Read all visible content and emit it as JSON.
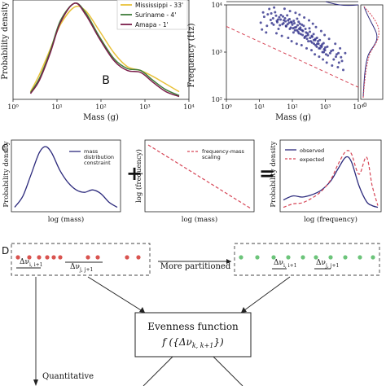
{
  "panel_letters": {
    "b": "B",
    "c": "C",
    "d": "D"
  },
  "colors": {
    "mississippi": "#e9c23b",
    "suriname": "#3f7d3a",
    "amapa": "#7a1d4a",
    "observed": "#2c2a7c",
    "expected": "#d64556",
    "scatter": "#2f2f8a",
    "red_dot": "#d9534f",
    "green_dot": "#6cc47a"
  },
  "chart_data": [
    {
      "type": "line",
      "panel": "A",
      "ylabel": "Probability density",
      "xlabel": "Mass (g)",
      "x_scale": "log",
      "xlim": [
        1,
        10000
      ],
      "xticks": [
        "10⁰",
        "10¹",
        "10²",
        "10³",
        "10⁴"
      ],
      "legend_position": "top-right",
      "series": [
        {
          "name": "Mississippi - 33'",
          "x": [
            2.5,
            4,
            7,
            12,
            25,
            45,
            90,
            200,
            400,
            800,
            1500,
            3000,
            6000
          ],
          "y": [
            0.08,
            0.26,
            0.52,
            0.78,
            0.96,
            0.92,
            0.72,
            0.48,
            0.34,
            0.3,
            0.24,
            0.16,
            0.08
          ]
        },
        {
          "name": "Suriname - 4'",
          "x": [
            2.5,
            4,
            7,
            12,
            25,
            45,
            90,
            200,
            400,
            800,
            1500,
            3000,
            6000
          ],
          "y": [
            0.07,
            0.22,
            0.5,
            0.82,
            1.0,
            0.9,
            0.66,
            0.42,
            0.32,
            0.3,
            0.2,
            0.1,
            0.04
          ]
        },
        {
          "name": "Amapa - 1'",
          "x": [
            2.5,
            4,
            7,
            12,
            25,
            45,
            90,
            200,
            400,
            800,
            1500,
            3000,
            6000
          ],
          "y": [
            0.06,
            0.2,
            0.48,
            0.8,
            1.0,
            0.88,
            0.64,
            0.4,
            0.3,
            0.28,
            0.18,
            0.08,
            0.03
          ]
        }
      ]
    },
    {
      "type": "scatter",
      "panel": "B",
      "xlabel": "Mass (g)",
      "ylabel": "Frequency (Hz)",
      "x_scale": "log",
      "y_scale": "log",
      "xlim": [
        1,
        10000
      ],
      "ylim": [
        100,
        10000
      ],
      "xticks": [
        "10⁰",
        "10¹",
        "10²",
        "10³",
        "10⁴"
      ],
      "yticks": [
        "10²",
        "10³",
        "10⁴"
      ],
      "fit_line": {
        "style": "dashed",
        "x": [
          1,
          10000
        ],
        "y": [
          3500,
          180
        ]
      },
      "points": [
        [
          14,
          5600
        ],
        [
          18,
          6300
        ],
        [
          22,
          4800
        ],
        [
          26,
          5200
        ],
        [
          30,
          7000
        ],
        [
          35,
          4300
        ],
        [
          40,
          5500
        ],
        [
          45,
          6100
        ],
        [
          50,
          3900
        ],
        [
          55,
          4700
        ],
        [
          60,
          5200
        ],
        [
          65,
          3500
        ],
        [
          70,
          6000
        ],
        [
          80,
          4200
        ],
        [
          90,
          3300
        ],
        [
          100,
          3800
        ],
        [
          110,
          4600
        ],
        [
          120,
          2900
        ],
        [
          130,
          3400
        ],
        [
          140,
          5100
        ],
        [
          150,
          2700
        ],
        [
          160,
          3100
        ],
        [
          170,
          4000
        ],
        [
          180,
          2400
        ],
        [
          200,
          2900
        ],
        [
          220,
          3600
        ],
        [
          240,
          2100
        ],
        [
          260,
          2600
        ],
        [
          280,
          1900
        ],
        [
          300,
          2300
        ],
        [
          330,
          3200
        ],
        [
          360,
          1700
        ],
        [
          400,
          2100
        ],
        [
          450,
          1500
        ],
        [
          500,
          1900
        ],
        [
          550,
          1300
        ],
        [
          600,
          1700
        ],
        [
          700,
          1200
        ],
        [
          800,
          1450
        ],
        [
          900,
          1000
        ],
        [
          1000,
          1250
        ],
        [
          1200,
          850
        ],
        [
          1500,
          1050
        ],
        [
          1800,
          700
        ],
        [
          2200,
          900
        ],
        [
          2600,
          600
        ],
        [
          3000,
          780
        ],
        [
          12,
          3000
        ],
        [
          16,
          2600
        ],
        [
          20,
          8200
        ],
        [
          28,
          8800
        ],
        [
          33,
          2500
        ],
        [
          38,
          3100
        ],
        [
          48,
          2200
        ],
        [
          58,
          8300
        ],
        [
          75,
          2000
        ],
        [
          85,
          7400
        ],
        [
          95,
          1700
        ],
        [
          125,
          6800
        ],
        [
          135,
          1500
        ],
        [
          165,
          6200
        ],
        [
          190,
          1400
        ],
        [
          230,
          5400
        ],
        [
          270,
          1200
        ],
        [
          320,
          4700
        ],
        [
          380,
          1100
        ],
        [
          420,
          4000
        ],
        [
          480,
          900
        ],
        [
          520,
          3400
        ],
        [
          650,
          800
        ],
        [
          750,
          2800
        ],
        [
          850,
          700
        ],
        [
          950,
          2300
        ],
        [
          1100,
          600
        ],
        [
          1300,
          1900
        ],
        [
          1600,
          520
        ],
        [
          2000,
          1500
        ],
        [
          2400,
          480
        ],
        [
          2800,
          1200
        ],
        [
          3500,
          420
        ],
        [
          4000,
          950
        ],
        [
          11,
          4200
        ],
        [
          13,
          6900
        ],
        [
          17,
          3600
        ],
        [
          23,
          6600
        ],
        [
          27,
          3800
        ],
        [
          32,
          5900
        ],
        [
          37,
          4900
        ],
        [
          42,
          3700
        ],
        [
          52,
          5700
        ],
        [
          62,
          4500
        ],
        [
          72,
          3900
        ],
        [
          82,
          5000
        ],
        [
          92,
          4400
        ],
        [
          105,
          3200
        ],
        [
          115,
          4100
        ],
        [
          145,
          3700
        ],
        [
          155,
          4400
        ],
        [
          175,
          3300
        ],
        [
          195,
          3800
        ],
        [
          210,
          2800
        ],
        [
          250,
          3100
        ],
        [
          290,
          2500
        ],
        [
          340,
          2700
        ],
        [
          390,
          2200
        ],
        [
          440,
          2400
        ],
        [
          490,
          1800
        ],
        [
          560,
          2000
        ],
        [
          620,
          1500
        ],
        [
          680,
          1800
        ],
        [
          780,
          1300
        ],
        [
          880,
          1550
        ],
        [
          980,
          1100
        ],
        [
          1150,
          1300
        ],
        [
          1400,
          950
        ],
        [
          1700,
          1100
        ],
        [
          2100,
          800
        ],
        [
          2500,
          950
        ],
        [
          3200,
          650
        ],
        [
          24,
          4100
        ],
        [
          34,
          4600
        ],
        [
          44,
          4900
        ],
        [
          54,
          4100
        ],
        [
          64,
          3600
        ],
        [
          74,
          4700
        ],
        [
          84,
          3100
        ],
        [
          96,
          4200
        ],
        [
          108,
          2600
        ],
        [
          118,
          3300
        ],
        [
          138,
          2900
        ],
        [
          158,
          2500
        ],
        [
          178,
          3000
        ],
        [
          205,
          2300
        ],
        [
          235,
          2000
        ],
        [
          265,
          2200
        ],
        [
          305,
          1700
        ],
        [
          345,
          2000
        ],
        [
          395,
          1600
        ],
        [
          445,
          1800
        ],
        [
          505,
          1400
        ],
        [
          570,
          1500
        ],
        [
          640,
          1200
        ],
        [
          720,
          1350
        ],
        [
          820,
          1000
        ],
        [
          920,
          1150
        ],
        [
          1050,
          900
        ]
      ]
    },
    {
      "type": "line",
      "panel": "C1",
      "xlabel": "log (mass)",
      "ylabel": "Probability density",
      "series": [
        {
          "name": "mass distribution constraint",
          "x": [
            0,
            0.08,
            0.16,
            0.24,
            0.3,
            0.36,
            0.44,
            0.52,
            0.6,
            0.68,
            0.76,
            0.84,
            0.92,
            1
          ],
          "y": [
            0.02,
            0.2,
            0.55,
            0.9,
            1.0,
            0.9,
            0.62,
            0.42,
            0.3,
            0.26,
            0.3,
            0.24,
            0.1,
            0.02
          ]
        }
      ]
    },
    {
      "type": "line",
      "panel": "C2",
      "xlabel": "log (mass)",
      "ylabel": "log (frequency)",
      "series": [
        {
          "name": "frequency-mass scaling",
          "x": [
            0,
            1
          ],
          "y": [
            1,
            0
          ]
        }
      ]
    },
    {
      "type": "line",
      "panel": "C3",
      "xlabel": "log (frequency)",
      "ylabel": "Probability density",
      "series": [
        {
          "name": "observed",
          "x": [
            0,
            0.1,
            0.2,
            0.3,
            0.4,
            0.5,
            0.58,
            0.66,
            0.72,
            0.8,
            0.88,
            0.94,
            1
          ],
          "y": [
            0.15,
            0.22,
            0.2,
            0.24,
            0.32,
            0.48,
            0.7,
            0.9,
            0.82,
            0.4,
            0.12,
            0.05,
            0.02
          ]
        },
        {
          "name": "expected",
          "x": [
            0,
            0.1,
            0.2,
            0.3,
            0.4,
            0.5,
            0.58,
            0.66,
            0.72,
            0.8,
            0.88,
            0.94,
            1
          ],
          "y": [
            0.02,
            0.08,
            0.1,
            0.18,
            0.3,
            0.5,
            0.78,
            1.0,
            0.96,
            0.6,
            0.9,
            0.4,
            0.05
          ]
        }
      ]
    }
  ],
  "operators": {
    "plus": "+",
    "equals": "="
  },
  "diagram": {
    "delta_left_1": "Δν",
    "delta_left_1_sub": "i, i+1",
    "delta_left_2": "Δν",
    "delta_left_2_sub": "j, j+1",
    "more_partitioned": "More partitioned",
    "evenness_title": "Evenness function",
    "evenness_formula": "f ({Δν",
    "evenness_formula_sub": "k, k+1",
    "evenness_formula_end": "})",
    "quantitative": "Quantitative"
  }
}
